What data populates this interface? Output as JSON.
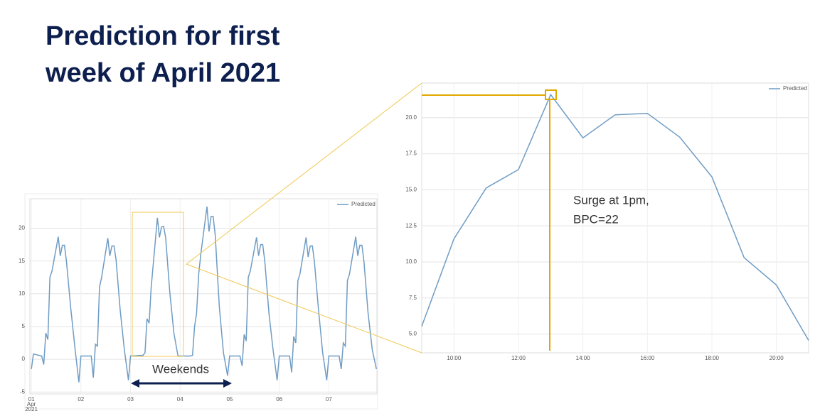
{
  "title_lines": [
    "Prediction for first",
    "week of April 2021"
  ],
  "bracket_label": "Weekends",
  "chart_data": [
    {
      "type": "line",
      "grid": true,
      "legend": "upper right",
      "x": [
        1,
        1.042,
        1.208,
        1.25,
        1.292,
        1.333,
        1.375,
        1.417,
        1.542,
        1.583,
        1.625,
        1.667,
        1.708,
        1.792,
        1.875,
        1.958,
        2,
        2.042,
        2.208,
        2.25,
        2.292,
        2.333,
        2.375,
        2.417,
        2.542,
        2.583,
        2.625,
        2.667,
        2.708,
        2.792,
        2.875,
        2.958,
        3,
        3.042,
        3.208,
        3.25,
        3.292,
        3.333,
        3.375,
        3.417,
        3.542,
        3.583,
        3.625,
        3.667,
        3.708,
        3.792,
        3.875,
        3.958,
        4,
        4.042,
        4.208,
        4.25,
        4.292,
        4.333,
        4.375,
        4.417,
        4.542,
        4.583,
        4.625,
        4.667,
        4.708,
        4.792,
        4.875,
        4.958,
        5,
        5.042,
        5.208,
        5.25,
        5.292,
        5.333,
        5.375,
        5.417,
        5.542,
        5.583,
        5.625,
        5.667,
        5.708,
        5.792,
        5.875,
        5.958,
        6,
        6.042,
        6.208,
        6.25,
        6.292,
        6.333,
        6.375,
        6.417,
        6.542,
        6.583,
        6.625,
        6.667,
        6.708,
        6.792,
        6.875,
        6.958,
        7,
        7.042,
        7.208,
        7.25,
        7.292,
        7.333,
        7.375,
        7.417,
        7.542,
        7.583,
        7.625,
        7.667,
        7.708,
        7.792,
        7.875,
        7.958
      ],
      "series": [
        {
          "name": "Predicted",
          "color": "#6f9cc4",
          "values": [
            -1.5,
            0.8,
            0.5,
            -0.8,
            4,
            3,
            12.5,
            13.5,
            18.7,
            15.8,
            17.4,
            17.4,
            15,
            8,
            2,
            -3.5,
            0.5,
            0.5,
            0.5,
            -2.8,
            2.3,
            2,
            11,
            12.5,
            18.5,
            15.8,
            17.3,
            17.3,
            15.2,
            7.5,
            1.5,
            -3.2,
            0.5,
            0.5,
            0.6,
            0.6,
            1,
            6.2,
            5.5,
            11,
            21.6,
            18.6,
            20.2,
            20.3,
            18.6,
            10.3,
            4,
            0.5,
            0.5,
            0.5,
            0.5,
            0.6,
            5,
            7,
            13,
            16,
            23.3,
            19.5,
            21.8,
            21.8,
            19,
            8,
            1,
            -2.5,
            0.5,
            0.5,
            0.5,
            -1,
            3.8,
            2.8,
            12.5,
            13.5,
            18.6,
            15.8,
            17.5,
            17.5,
            15,
            7,
            1.5,
            -3.2,
            0.5,
            0.5,
            0.5,
            -2,
            3.5,
            2.5,
            12,
            13,
            18.6,
            15.6,
            17.3,
            17.3,
            15,
            7.5,
            1,
            -3.2,
            0.5,
            0.5,
            0.5,
            -1.5,
            2.5,
            2,
            12,
            13,
            18.7,
            15.8,
            17.4,
            17.4,
            15,
            7,
            1.5,
            -1.5
          ]
        }
      ],
      "xlim": [
        0.97,
        7.97
      ],
      "xticks": [
        {
          "value": 1,
          "label": "01\nApr\n2021"
        },
        {
          "value": 2,
          "label": "02"
        },
        {
          "value": 3,
          "label": "03"
        },
        {
          "value": 4,
          "label": "04"
        },
        {
          "value": 5,
          "label": "05"
        },
        {
          "value": 6,
          "label": "06"
        },
        {
          "value": 7,
          "label": "07"
        }
      ],
      "ylim": [
        -5.3,
        24.5
      ],
      "yticks": [
        -5,
        0,
        5,
        10,
        15,
        20
      ]
    },
    {
      "type": "line",
      "grid": true,
      "legend": "upper right",
      "x": [
        9,
        10,
        11,
        12,
        13,
        14,
        15,
        16,
        17,
        18,
        19,
        20,
        21
      ],
      "series": [
        {
          "name": "Predicted",
          "color": "#6f9cc4",
          "values": [
            5.54,
            11.6,
            15.13,
            16.4,
            21.6,
            18.6,
            20.2,
            20.3,
            18.65,
            15.9,
            10.3,
            8.4,
            4.56
          ]
        }
      ],
      "xlim": [
        9,
        21
      ],
      "xticks": [
        {
          "value": 10,
          "label": "10:00"
        },
        {
          "value": 12,
          "label": "12:00"
        },
        {
          "value": 14,
          "label": "14:00"
        },
        {
          "value": 16,
          "label": "16:00"
        },
        {
          "value": 18,
          "label": "18:00"
        },
        {
          "value": 20,
          "label": "20:00"
        }
      ],
      "ylim": [
        3.7,
        22.4
      ],
      "yticks": [
        {
          "value": 5,
          "label": "5.0"
        },
        {
          "value": 7.5,
          "label": "7.5"
        },
        {
          "value": 10,
          "label": "10.0"
        },
        {
          "value": 12.5,
          "label": "12.5"
        },
        {
          "value": 15,
          "label": "15.0"
        },
        {
          "value": 17.5,
          "label": "17.5"
        },
        {
          "value": 20,
          "label": "20.0"
        }
      ],
      "annotations": [
        "Surge at 1pm,",
        "BPC=22"
      ]
    }
  ]
}
